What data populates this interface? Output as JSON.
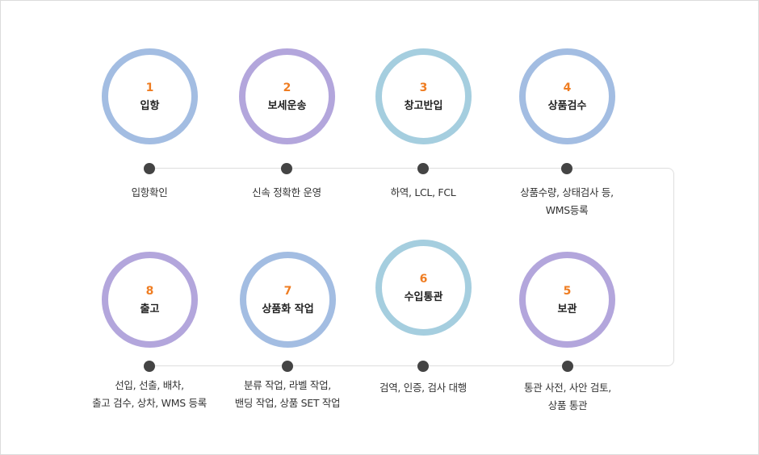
{
  "colors": {
    "blue": "#a3bde2",
    "purple": "#b3a6dc",
    "teal": "#a5cedf",
    "number": "#ef7d22",
    "dot": "#444444"
  },
  "steps": [
    {
      "number": "1",
      "title": "입항",
      "ring_color": "blue",
      "desc": [
        "입항확인"
      ]
    },
    {
      "number": "2",
      "title": "보세운송",
      "ring_color": "purple",
      "desc": [
        "신속 정확한 운영"
      ]
    },
    {
      "number": "3",
      "title": "창고반입",
      "ring_color": "teal",
      "desc": [
        "하역, LCL, FCL"
      ]
    },
    {
      "number": "4",
      "title": "상품검수",
      "ring_color": "blue",
      "desc": [
        "상품수량, 상태검사 등,",
        "WMS등록"
      ]
    },
    {
      "number": "5",
      "title": "보관",
      "ring_color": "purple",
      "desc": [
        "통관 사전, 사안 검토,",
        "상품 통관"
      ]
    },
    {
      "number": "6",
      "title": "수입통관",
      "ring_color": "teal",
      "desc": [
        "검역, 인증, 검사 대행"
      ]
    },
    {
      "number": "7",
      "title": "상품화 작업",
      "ring_color": "blue",
      "desc": [
        "분류 작업, 라벨 작업,",
        "밴딩 작업, 상품 SET 작업"
      ]
    },
    {
      "number": "8",
      "title": "출고",
      "ring_color": "purple",
      "desc": [
        "선입, 선출, 배차,",
        "출고 검수, 상차, WMS 등록"
      ]
    }
  ]
}
